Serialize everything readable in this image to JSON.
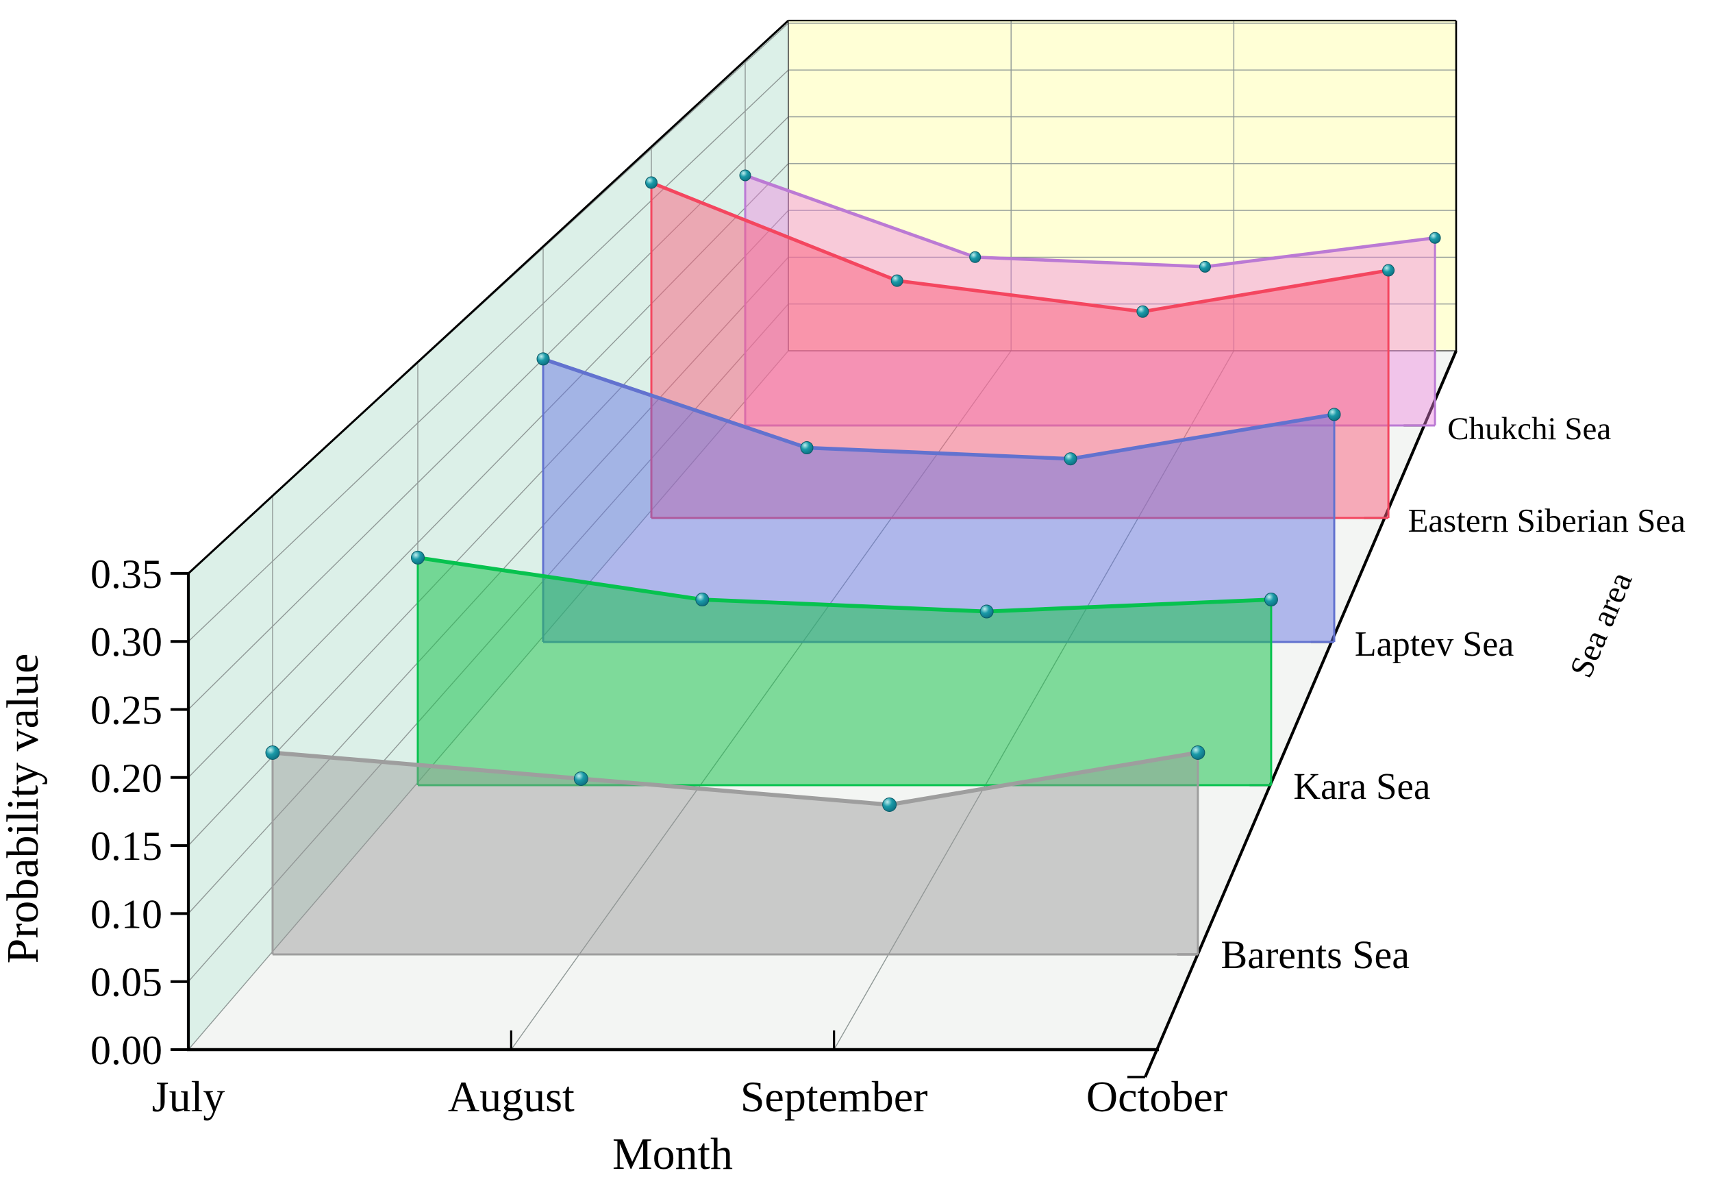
{
  "chart_data": {
    "type": "area",
    "subtype": "3d-ribbon-walls",
    "title": "",
    "xlabel": "Month",
    "ylabel": "Probability value",
    "zlabel": "Sea area",
    "categories": [
      "July",
      "August",
      "September",
      "October"
    ],
    "ylim": [
      0.0,
      0.35
    ],
    "ytick_step": 0.05,
    "ytick_labels": [
      "0.00",
      "0.05",
      "0.10",
      "0.15",
      "0.20",
      "0.25",
      "0.30",
      "0.35"
    ],
    "grid": true,
    "legend_position": "none",
    "series": [
      {
        "name": "Barents Sea",
        "values": [
          0.155,
          0.135,
          0.115,
          0.155
        ],
        "line_color": "#9e9e9e",
        "fill_color": "rgba(150,150,150,0.45)"
      },
      {
        "name": "Kara Sea",
        "values": [
          0.19,
          0.155,
          0.145,
          0.155
        ],
        "line_color": "#07c24f",
        "fill_color": "rgba(30,195,80,0.55)"
      },
      {
        "name": "Laptev Sea",
        "values": [
          0.255,
          0.175,
          0.165,
          0.205
        ],
        "line_color": "#6272cf",
        "fill_color": "rgba(100,115,225,0.48)"
      },
      {
        "name": "Eastern Siberian Sea",
        "values": [
          0.325,
          0.23,
          0.2,
          0.24
        ],
        "line_color": "#f4465f",
        "fill_color": "rgba(250,95,125,0.50)"
      },
      {
        "name": "Chukchi Sea",
        "values": [
          0.26,
          0.175,
          0.165,
          0.195
        ],
        "line_color": "#bb7ad4",
        "fill_color": "rgba(238,128,222,0.42)"
      }
    ],
    "marker": {
      "highlight_color": "#bfeeee",
      "mid_color": "#1a9aa8",
      "base_color": "#0d6e80",
      "edge_color": "#0a5a66"
    },
    "walls": {
      "left_wall_color": "#dcf0e8",
      "back_wall_color": "#ffffd6",
      "floor_color": "#f3f5f3",
      "grid_line_color": "#8f9896",
      "edge_color": "#000000"
    }
  }
}
